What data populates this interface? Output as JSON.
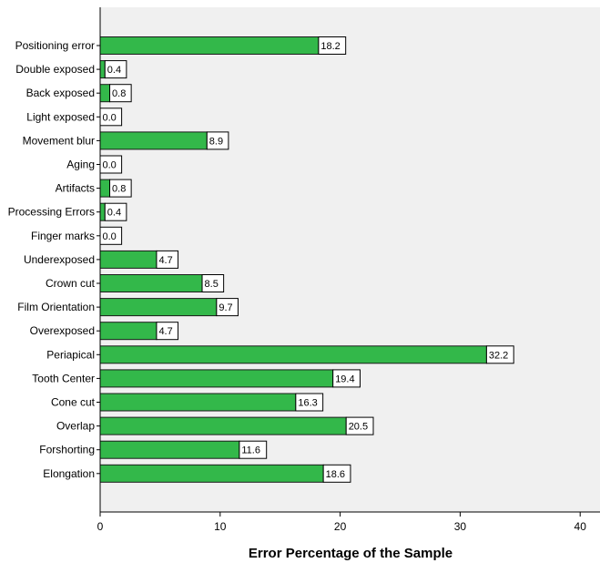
{
  "chart_data": {
    "type": "bar",
    "orientation": "horizontal",
    "title": "",
    "xlabel": "Error Percentage of the Sample",
    "ylabel": "",
    "xlim": [
      0,
      40
    ],
    "xticks": [
      0,
      10,
      20,
      30,
      40
    ],
    "grid": false,
    "colors": {
      "bar": "#33b84a",
      "bar_stroke": "#1a1a1a",
      "plot_bg": "#f0f0f0",
      "label_bg": "#ffffff"
    },
    "categories": [
      "Positioning error",
      "Double exposed",
      "Back exposed",
      "Light exposed",
      "Movement blur",
      "Aging",
      "Artifacts",
      "Processing Errors",
      "Finger marks",
      "Underexposed",
      "Crown cut",
      "Film Orientation",
      "Overexposed",
      "Periapical",
      "Tooth Center",
      "Cone cut",
      "Overlap",
      "Forshorting",
      "Elongation"
    ],
    "values": [
      18.2,
      0.4,
      0.8,
      0.0,
      8.9,
      0.0,
      0.8,
      0.4,
      0.0,
      4.7,
      8.5,
      9.7,
      4.7,
      32.2,
      19.4,
      16.3,
      20.5,
      11.6,
      18.6
    ],
    "value_labels": [
      "18.2",
      "0.4",
      "0.8",
      "0.0",
      "8.9",
      "0.0",
      "0.8",
      "0.4",
      "0.0",
      "4.7",
      "8.5",
      "9.7",
      "4.7",
      "32.2",
      "19.4",
      "16.3",
      "20.5",
      "11.6",
      "18.6"
    ]
  }
}
